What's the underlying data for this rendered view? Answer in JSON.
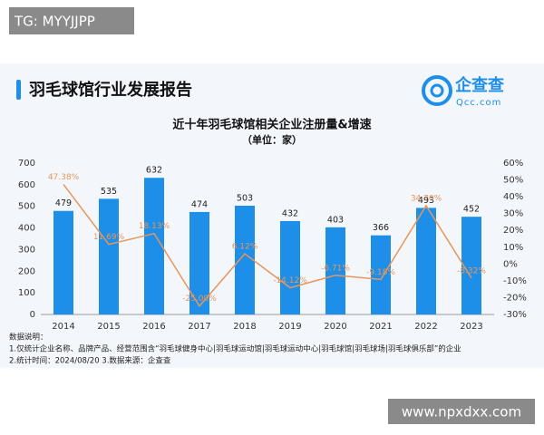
{
  "watermark_top": "TG: MYYJJPP",
  "header": {
    "title": "羽毛球馆行业发展报告",
    "logo_name": "企查查",
    "logo_url": "Qcc.com"
  },
  "chart_data": {
    "type": "bar",
    "title": "近十年羽毛球馆相关企业注册量&增速",
    "subtitle": "（单位：家）",
    "categories": [
      "2014",
      "2015",
      "2016",
      "2017",
      "2018",
      "2019",
      "2020",
      "2021",
      "2022",
      "2023"
    ],
    "series": [
      {
        "type": "bar",
        "color": "#1e8fe8",
        "values": [
          479,
          535,
          632,
          474,
          503,
          432,
          403,
          366,
          493,
          452
        ]
      },
      {
        "type": "line",
        "axis": "y2",
        "color": "#e8955a",
        "values": [
          47.38,
          11.69,
          18.13,
          -25.0,
          6.12,
          -14.12,
          -6.71,
          -9.18,
          34.7,
          -8.32
        ],
        "value_labels": [
          "47.38%",
          "11.69%",
          "18.13%",
          "-25.00%",
          "6.12%",
          "-14.12%",
          "-6.71%",
          "-9.18%",
          "34.70%",
          "-8.32%"
        ]
      }
    ],
    "ylim": [
      0,
      700
    ],
    "yticks": [
      0,
      100,
      200,
      300,
      400,
      500,
      600,
      700
    ],
    "y2lim": [
      -30,
      60
    ],
    "y2ticks": [
      {
        "value": -30,
        "label": "-30%"
      },
      {
        "value": -20,
        "label": "-20%"
      },
      {
        "value": -10,
        "label": "-10%"
      },
      {
        "value": 0,
        "label": "0%"
      },
      {
        "value": 10,
        "label": "10%"
      },
      {
        "value": 20,
        "label": "20%"
      },
      {
        "value": 30,
        "label": "30%"
      },
      {
        "value": 40,
        "label": "40%"
      },
      {
        "value": 50,
        "label": "50%"
      },
      {
        "value": 60,
        "label": "60%"
      }
    ],
    "grid": false
  },
  "notes": [
    "数据说明：",
    "1.仅统计企业名称、品牌产品、经营范围含“羽毛球健身中心|羽毛球运动馆|羽毛球运动中心|羽毛球馆|羽毛球场|羽毛球俱乐部”的企业",
    "2.统计时间：2024/08/20    3.数据来源：企查查"
  ],
  "watermark_bottom": "www.npxdxx.com"
}
